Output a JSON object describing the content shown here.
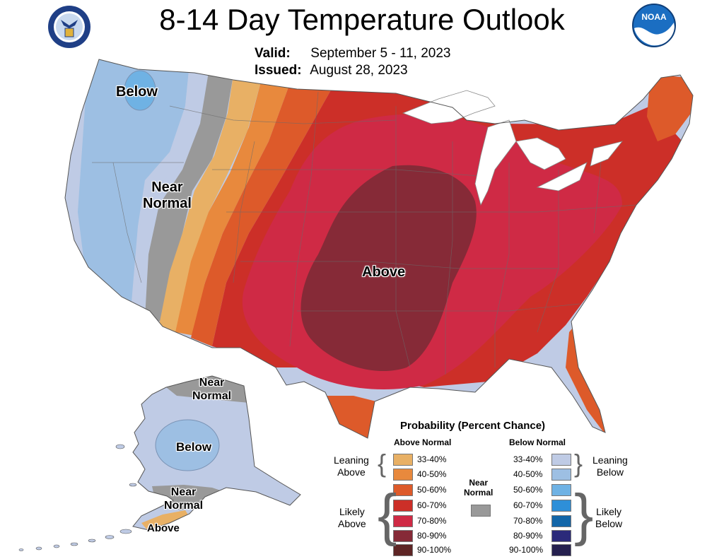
{
  "title": "8-14 Day Temperature Outlook",
  "valid_label": "Valid:",
  "valid_value": "September 5 - 11, 2023",
  "issued_label": "Issued:",
  "issued_value": "August 28, 2023",
  "logos": {
    "left": "department-of-commerce-seal",
    "right": "noaa-logo",
    "right_text": "NOAA"
  },
  "map_labels": {
    "below_west": "Below",
    "near_normal_west": [
      "Near",
      "Normal"
    ],
    "above_central": "Above",
    "alaska_near_normal_north": [
      "Near",
      "Normal"
    ],
    "alaska_below": "Below",
    "alaska_near_normal_south": [
      "Near",
      "Normal"
    ],
    "alaska_above": "Above"
  },
  "legend": {
    "title": "Probability (Percent Chance)",
    "above_header": "Above Normal",
    "below_header": "Below Normal",
    "near_normal": [
      "Near",
      "Normal"
    ],
    "near_normal_color": "#999999",
    "leaning_above": [
      "Leaning",
      "Above"
    ],
    "likely_above": [
      "Likely",
      "Above"
    ],
    "leaning_below": [
      "Leaning",
      "Below"
    ],
    "likely_below": [
      "Likely",
      "Below"
    ],
    "above": [
      {
        "range": "33-40%",
        "color": "#e8b065"
      },
      {
        "range": "40-50%",
        "color": "#e8893d"
      },
      {
        "range": "50-60%",
        "color": "#dd5a2a"
      },
      {
        "range": "60-70%",
        "color": "#cc2f28"
      },
      {
        "range": "70-80%",
        "color": "#cf2a45"
      },
      {
        "range": "80-90%",
        "color": "#862a37"
      },
      {
        "range": "90-100%",
        "color": "#5e2525"
      }
    ],
    "below": [
      {
        "range": "33-40%",
        "color": "#bfcbe5"
      },
      {
        "range": "40-50%",
        "color": "#9dbfe3"
      },
      {
        "range": "50-60%",
        "color": "#6fb2e4"
      },
      {
        "range": "60-70%",
        "color": "#2e8fd8"
      },
      {
        "range": "70-80%",
        "color": "#1366a8"
      },
      {
        "range": "80-90%",
        "color": "#2b2a7a"
      },
      {
        "range": "90-100%",
        "color": "#25204f"
      }
    ]
  }
}
